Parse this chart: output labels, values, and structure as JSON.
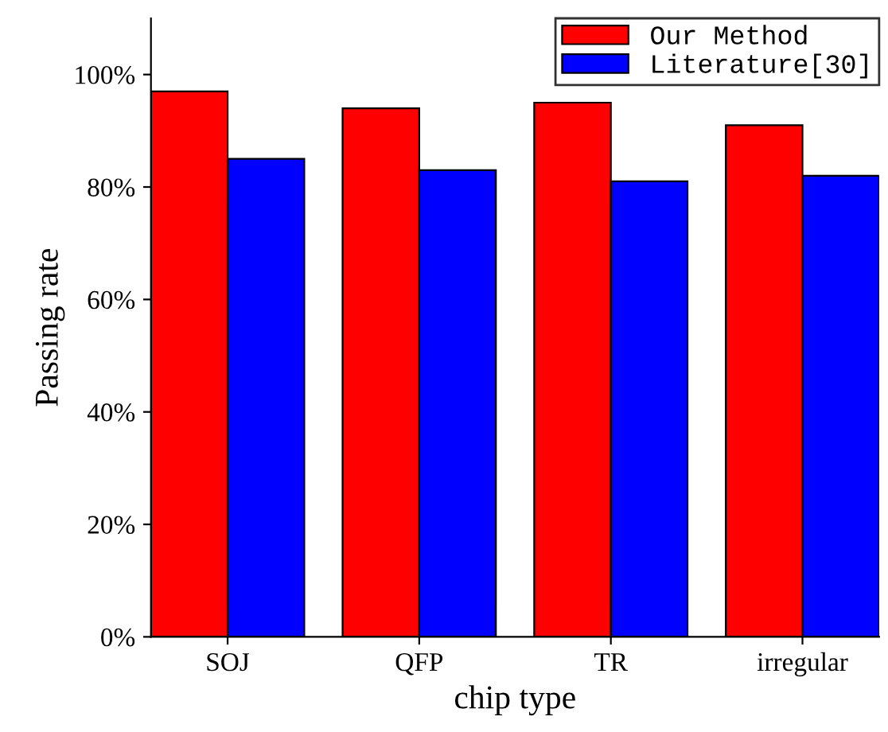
{
  "chart_data": {
    "type": "bar",
    "xlabel": "chip type",
    "ylabel": "Passing rate",
    "categories": [
      "SOJ",
      "QFP",
      "TR",
      "irregular"
    ],
    "series": [
      {
        "name": "Our Method",
        "color": "#ff0000",
        "values": [
          97,
          94,
          95,
          91
        ]
      },
      {
        "name": "Literature[30]",
        "color": "#0000ff",
        "values": [
          85,
          83,
          81,
          82
        ]
      }
    ],
    "ylim": [
      0,
      110
    ],
    "yticks": [
      {
        "value": 0,
        "label": "0%"
      },
      {
        "value": 20,
        "label": "20%"
      },
      {
        "value": 40,
        "label": "40%"
      },
      {
        "value": 60,
        "label": "60%"
      },
      {
        "value": 80,
        "label": "80%"
      },
      {
        "value": 100,
        "label": "100%"
      }
    ],
    "grid": false,
    "legend": "top right"
  }
}
